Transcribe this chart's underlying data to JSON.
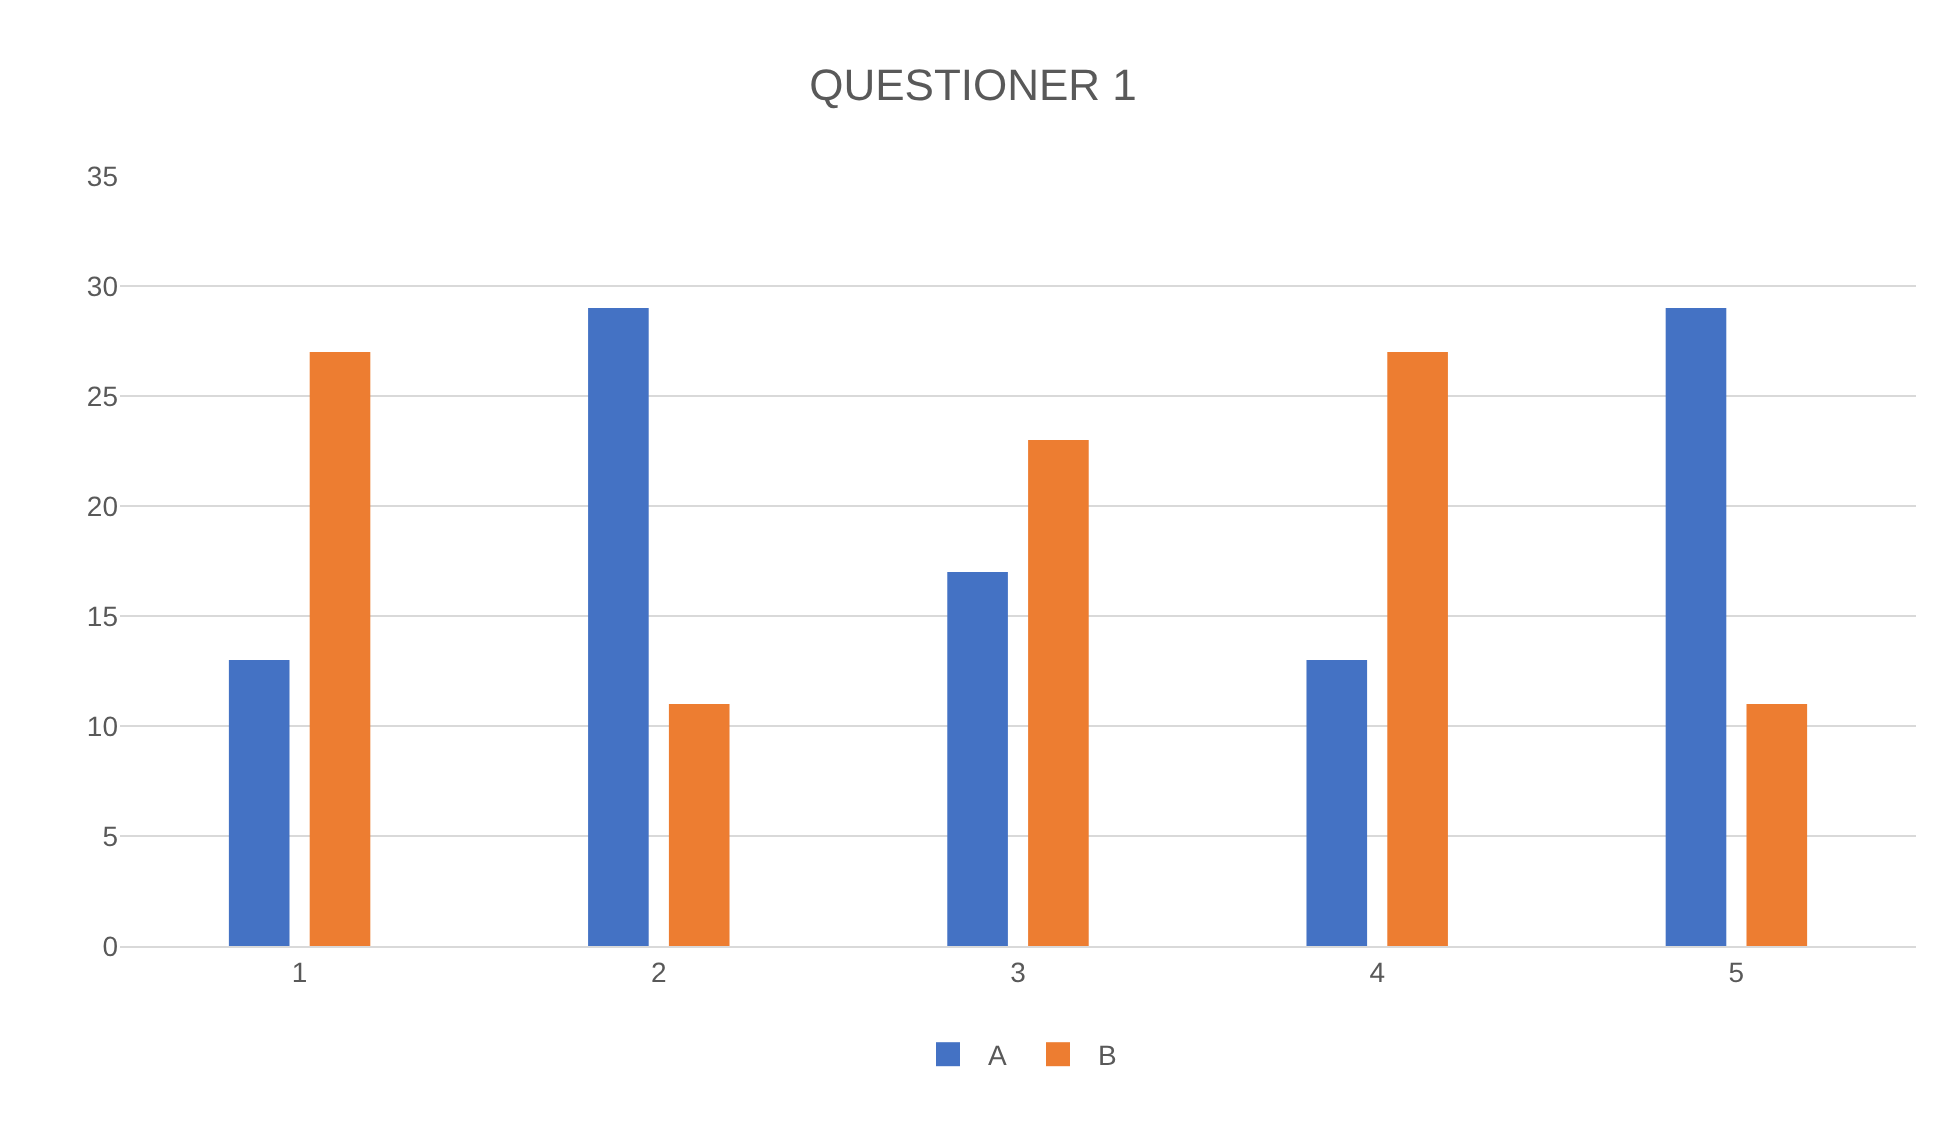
{
  "chart_data": {
    "type": "bar",
    "title": "QUESTIONER 1",
    "categories": [
      "1",
      "2",
      "3",
      "4",
      "5"
    ],
    "series": [
      {
        "name": "A",
        "color": "#4472c4",
        "values": [
          13,
          29,
          17,
          13,
          29
        ]
      },
      {
        "name": "B",
        "color": "#ed7d31",
        "values": [
          27,
          11,
          23,
          27,
          11
        ]
      }
    ],
    "ylim": [
      0,
      35
    ],
    "yticks": [
      0,
      5,
      10,
      15,
      20,
      25,
      30,
      35
    ],
    "grid": "y",
    "legend": "bottom"
  }
}
